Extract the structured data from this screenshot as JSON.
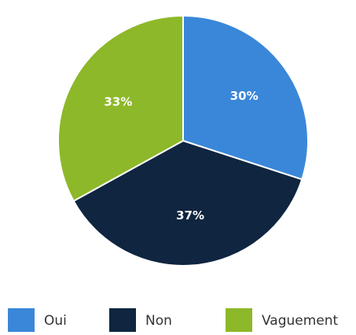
{
  "chart_data": {
    "type": "pie",
    "categories": [
      "Oui",
      "Non",
      "Vaguement"
    ],
    "values": [
      30,
      37,
      33
    ],
    "value_labels": [
      "30%",
      "37%",
      "33%"
    ],
    "colors": [
      "#3a87d9",
      "#0f2540",
      "#8db829"
    ],
    "legend": "bottom"
  }
}
